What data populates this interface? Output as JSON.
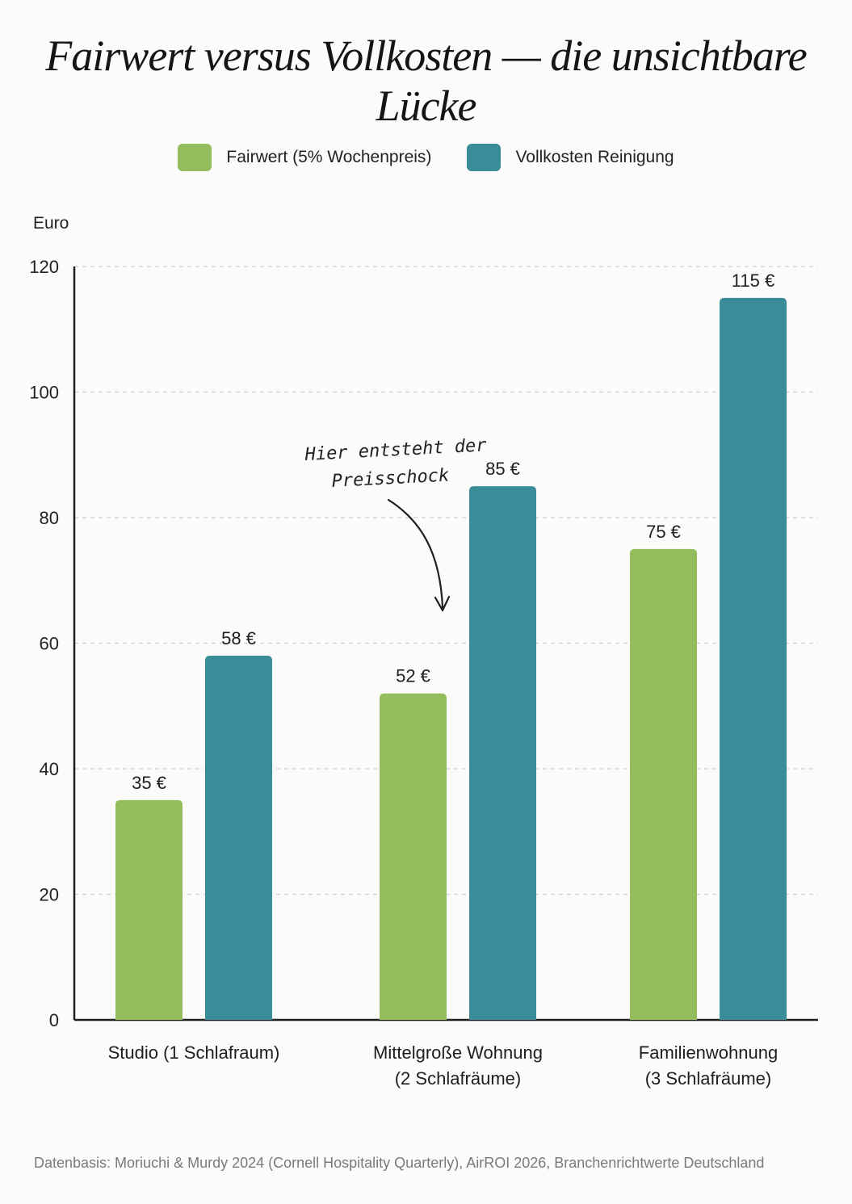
{
  "title": "Fairwert versus Vollkosten — die unsichtbare Lücke",
  "unit_label": "Euro",
  "footer": "Datenbasis: Moriuchi & Murdy 2024 (Cornell Hospitality Quarterly), AirROI 2026, Branchenrichtwerte Deutschland",
  "annotation": {
    "line1": "Hier entsteht der",
    "line2": "Preisschock"
  },
  "chart_data": {
    "type": "bar",
    "categories": [
      [
        "Studio (1 Schlafraum)"
      ],
      [
        "Mittelgroße Wohnung",
        "(2 Schlafräume)"
      ],
      [
        "Familienwohnung",
        "(3 Schlafräume)"
      ]
    ],
    "series": [
      {
        "name": "Fairwert (5% Wochenpreis)",
        "values": [
          35,
          52,
          75
        ],
        "labels": [
          "35 €",
          "52 €",
          "75 €"
        ],
        "color": "#94bd5e"
      },
      {
        "name": "Vollkosten Reinigung",
        "values": [
          58,
          85,
          115
        ],
        "labels": [
          "58 €",
          "85 €",
          "115 €"
        ],
        "color": "#3a8c99"
      }
    ],
    "ylabel": "Euro",
    "ylim": [
      0,
      120
    ],
    "yticks": [
      0,
      20,
      40,
      60,
      80,
      100,
      120
    ],
    "grid": true,
    "legend_position": "top"
  },
  "colors": {
    "fairwert": "#94bd5e",
    "vollkosten": "#3a8c99",
    "grid": "#cfcfcf",
    "axis": "#1e1e1e"
  }
}
